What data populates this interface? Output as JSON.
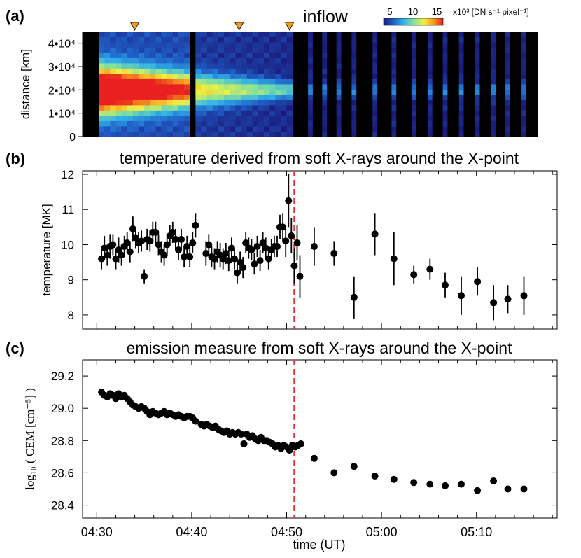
{
  "chart_data": [
    {
      "type": "heatmap",
      "panel_label": "(a)",
      "annotation": "inflow",
      "ylabel": "distance [km]",
      "yticks": [
        "0",
        "1•10⁴",
        "2•10⁴",
        "3•10⁴",
        "4•10⁴"
      ],
      "ylim": [
        0,
        45000
      ],
      "colorbar": {
        "ticks": [
          "5",
          "10",
          "15"
        ],
        "unit_label": "x10³ [DN s⁻¹ pixel⁻¹]",
        "range": [
          3,
          16
        ],
        "colors": [
          "#1a1a7a",
          "#2060c8",
          "#30b0e8",
          "#80e0a0",
          "#f0f040",
          "#f8a020",
          "#e82020"
        ]
      },
      "markers_time_min": [
        4.0,
        15.0,
        20.3
      ],
      "marker_color": "#f0a020",
      "vertical_dark_line_time_min": 10.0
    },
    {
      "type": "scatter",
      "panel_label": "(b)",
      "title": "temperature derived from soft X-rays around the X-point",
      "ylabel": "temperature [MK]",
      "yticks": [
        "8",
        "9",
        "10",
        "11",
        "12"
      ],
      "ylim": [
        7.6,
        12.1
      ],
      "xlim": [
        -1.5,
        48.5
      ],
      "marker_line_time_min": 20.8,
      "marker_line_color": "#e03030",
      "points": [
        {
          "t": 0.5,
          "y": 9.6,
          "err": 0.3
        },
        {
          "t": 0.8,
          "y": 9.9,
          "err": 0.35
        },
        {
          "t": 1.1,
          "y": 9.7,
          "err": 0.3
        },
        {
          "t": 1.4,
          "y": 9.95,
          "err": 0.35
        },
        {
          "t": 1.7,
          "y": 10.0,
          "err": 0.3
        },
        {
          "t": 2.0,
          "y": 9.6,
          "err": 0.3
        },
        {
          "t": 2.3,
          "y": 9.85,
          "err": 0.35
        },
        {
          "t": 2.6,
          "y": 9.7,
          "err": 0.3
        },
        {
          "t": 2.9,
          "y": 9.95,
          "err": 0.3
        },
        {
          "t": 3.2,
          "y": 10.05,
          "err": 0.3
        },
        {
          "t": 3.5,
          "y": 9.8,
          "err": 0.3
        },
        {
          "t": 3.8,
          "y": 10.45,
          "err": 0.35
        },
        {
          "t": 4.1,
          "y": 10.2,
          "err": 0.3
        },
        {
          "t": 4.4,
          "y": 10.05,
          "err": 0.3
        },
        {
          "t": 4.7,
          "y": 10.1,
          "err": 0.3
        },
        {
          "t": 5.0,
          "y": 9.1,
          "err": 0.2
        },
        {
          "t": 5.3,
          "y": 10.15,
          "err": 0.3
        },
        {
          "t": 5.6,
          "y": 10.1,
          "err": 0.3
        },
        {
          "t": 5.9,
          "y": 10.35,
          "err": 0.3
        },
        {
          "t": 6.2,
          "y": 10.35,
          "err": 0.3
        },
        {
          "t": 6.5,
          "y": 10.0,
          "err": 0.3
        },
        {
          "t": 6.8,
          "y": 9.8,
          "err": 0.3
        },
        {
          "t": 7.1,
          "y": 9.7,
          "err": 0.3
        },
        {
          "t": 7.4,
          "y": 10.0,
          "err": 0.3
        },
        {
          "t": 7.7,
          "y": 10.25,
          "err": 0.3
        },
        {
          "t": 8.0,
          "y": 10.35,
          "err": 0.3
        },
        {
          "t": 8.3,
          "y": 10.15,
          "err": 0.3
        },
        {
          "t": 8.6,
          "y": 9.85,
          "err": 0.3
        },
        {
          "t": 8.9,
          "y": 10.15,
          "err": 0.3
        },
        {
          "t": 9.2,
          "y": 9.65,
          "err": 0.3
        },
        {
          "t": 9.5,
          "y": 9.95,
          "err": 0.3
        },
        {
          "t": 9.8,
          "y": 9.65,
          "err": 0.3
        },
        {
          "t": 10.1,
          "y": 10.05,
          "err": 0.3
        },
        {
          "t": 10.4,
          "y": 10.55,
          "err": 0.35
        },
        {
          "t": 11.5,
          "y": 9.75,
          "err": 0.35
        },
        {
          "t": 11.8,
          "y": 10.0,
          "err": 0.3
        },
        {
          "t": 12.1,
          "y": 9.65,
          "err": 0.3
        },
        {
          "t": 12.4,
          "y": 9.6,
          "err": 0.3
        },
        {
          "t": 12.7,
          "y": 9.8,
          "err": 0.3
        },
        {
          "t": 13.0,
          "y": 9.7,
          "err": 0.35
        },
        {
          "t": 13.3,
          "y": 9.6,
          "err": 0.3
        },
        {
          "t": 13.6,
          "y": 9.75,
          "err": 0.3
        },
        {
          "t": 13.9,
          "y": 9.55,
          "err": 0.3
        },
        {
          "t": 14.2,
          "y": 9.9,
          "err": 0.3
        },
        {
          "t": 14.5,
          "y": 9.6,
          "err": 0.3
        },
        {
          "t": 14.8,
          "y": 9.2,
          "err": 0.3
        },
        {
          "t": 15.1,
          "y": 9.5,
          "err": 0.3
        },
        {
          "t": 15.4,
          "y": 9.35,
          "err": 0.3
        },
        {
          "t": 15.7,
          "y": 10.05,
          "err": 0.3
        },
        {
          "t": 16.0,
          "y": 9.9,
          "err": 0.3
        },
        {
          "t": 16.3,
          "y": 9.85,
          "err": 0.3
        },
        {
          "t": 16.6,
          "y": 9.45,
          "err": 0.3
        },
        {
          "t": 16.9,
          "y": 9.95,
          "err": 0.3
        },
        {
          "t": 17.2,
          "y": 9.55,
          "err": 0.3
        },
        {
          "t": 17.5,
          "y": 10.05,
          "err": 0.3
        },
        {
          "t": 17.8,
          "y": 9.9,
          "err": 0.3
        },
        {
          "t": 18.1,
          "y": 9.6,
          "err": 0.3
        },
        {
          "t": 18.4,
          "y": 9.85,
          "err": 0.3
        },
        {
          "t": 18.7,
          "y": 9.95,
          "err": 0.3
        },
        {
          "t": 19.0,
          "y": 9.95,
          "err": 0.3
        },
        {
          "t": 19.3,
          "y": 10.5,
          "err": 0.35
        },
        {
          "t": 19.6,
          "y": 10.5,
          "err": 0.4
        },
        {
          "t": 19.9,
          "y": 10.1,
          "err": 0.45
        },
        {
          "t": 20.2,
          "y": 11.25,
          "err": 0.75
        },
        {
          "t": 20.5,
          "y": 10.25,
          "err": 0.5
        },
        {
          "t": 20.8,
          "y": 9.4,
          "err": 0.5
        },
        {
          "t": 21.1,
          "y": 10.05,
          "err": 0.5
        },
        {
          "t": 21.4,
          "y": 9.1,
          "err": 0.6
        },
        {
          "t": 22.9,
          "y": 9.95,
          "err": 0.55
        },
        {
          "t": 25.0,
          "y": 9.75,
          "err": 0.35
        },
        {
          "t": 27.1,
          "y": 8.5,
          "err": 0.6
        },
        {
          "t": 29.3,
          "y": 10.3,
          "err": 0.6
        },
        {
          "t": 31.3,
          "y": 9.6,
          "err": 0.75
        },
        {
          "t": 33.4,
          "y": 9.15,
          "err": 0.25
        },
        {
          "t": 35.1,
          "y": 9.3,
          "err": 0.3
        },
        {
          "t": 36.7,
          "y": 8.85,
          "err": 0.35
        },
        {
          "t": 38.4,
          "y": 8.55,
          "err": 0.55
        },
        {
          "t": 40.1,
          "y": 8.95,
          "err": 0.4
        },
        {
          "t": 41.8,
          "y": 8.35,
          "err": 0.5
        },
        {
          "t": 43.3,
          "y": 8.45,
          "err": 0.4
        },
        {
          "t": 45.0,
          "y": 8.55,
          "err": 0.55
        }
      ]
    },
    {
      "type": "scatter",
      "panel_label": "(c)",
      "title": "emission measure from soft X-rays around the X-point",
      "ylabel": "log₁₀ ( CEM [cm⁻⁵] )",
      "yticks": [
        "28.4",
        "28.6",
        "28.8",
        "29.0",
        "29.2"
      ],
      "ylim": [
        28.32,
        29.3
      ],
      "xlim": [
        -1.5,
        48.5
      ],
      "xlabel": "time (UT)",
      "xticks": [
        "04:30",
        "04:40",
        "04:50",
        "05:00",
        "05:10"
      ],
      "xtick_values_min": [
        0,
        10,
        20,
        30,
        40
      ],
      "marker_line_time_min": 20.8,
      "points": [
        {
          "t": 0.5,
          "y": 29.1
        },
        {
          "t": 0.8,
          "y": 29.08
        },
        {
          "t": 1.1,
          "y": 29.07
        },
        {
          "t": 1.4,
          "y": 29.09
        },
        {
          "t": 1.7,
          "y": 29.08
        },
        {
          "t": 2.0,
          "y": 29.06
        },
        {
          "t": 2.3,
          "y": 29.09
        },
        {
          "t": 2.6,
          "y": 29.07
        },
        {
          "t": 2.9,
          "y": 29.08
        },
        {
          "t": 3.2,
          "y": 29.06
        },
        {
          "t": 3.5,
          "y": 29.04
        },
        {
          "t": 3.8,
          "y": 29.02
        },
        {
          "t": 4.1,
          "y": 29.01
        },
        {
          "t": 4.4,
          "y": 29.0
        },
        {
          "t": 4.7,
          "y": 29.01
        },
        {
          "t": 5.0,
          "y": 29.0
        },
        {
          "t": 5.3,
          "y": 28.98
        },
        {
          "t": 5.6,
          "y": 28.96
        },
        {
          "t": 5.9,
          "y": 28.98
        },
        {
          "t": 6.2,
          "y": 28.97
        },
        {
          "t": 6.5,
          "y": 28.96
        },
        {
          "t": 6.8,
          "y": 28.97
        },
        {
          "t": 7.1,
          "y": 28.98
        },
        {
          "t": 7.4,
          "y": 28.96
        },
        {
          "t": 7.7,
          "y": 28.97
        },
        {
          "t": 8.0,
          "y": 28.96
        },
        {
          "t": 8.3,
          "y": 28.95
        },
        {
          "t": 8.6,
          "y": 28.96
        },
        {
          "t": 8.9,
          "y": 28.95
        },
        {
          "t": 9.2,
          "y": 28.94
        },
        {
          "t": 9.5,
          "y": 28.95
        },
        {
          "t": 9.8,
          "y": 28.95
        },
        {
          "t": 10.1,
          "y": 28.94
        },
        {
          "t": 10.4,
          "y": 28.92
        },
        {
          "t": 11.0,
          "y": 28.9
        },
        {
          "t": 11.3,
          "y": 28.89
        },
        {
          "t": 11.6,
          "y": 28.9
        },
        {
          "t": 11.9,
          "y": 28.89
        },
        {
          "t": 12.2,
          "y": 28.88
        },
        {
          "t": 12.5,
          "y": 28.89
        },
        {
          "t": 12.8,
          "y": 28.87
        },
        {
          "t": 13.1,
          "y": 28.86
        },
        {
          "t": 13.4,
          "y": 28.85
        },
        {
          "t": 13.7,
          "y": 28.86
        },
        {
          "t": 14.0,
          "y": 28.84
        },
        {
          "t": 14.3,
          "y": 28.85
        },
        {
          "t": 14.6,
          "y": 28.84
        },
        {
          "t": 14.9,
          "y": 28.85
        },
        {
          "t": 15.2,
          "y": 28.84
        },
        {
          "t": 15.5,
          "y": 28.78
        },
        {
          "t": 15.8,
          "y": 28.84
        },
        {
          "t": 16.1,
          "y": 28.82
        },
        {
          "t": 16.4,
          "y": 28.83
        },
        {
          "t": 16.7,
          "y": 28.81
        },
        {
          "t": 17.0,
          "y": 28.8
        },
        {
          "t": 17.3,
          "y": 28.82
        },
        {
          "t": 17.6,
          "y": 28.8
        },
        {
          "t": 17.9,
          "y": 28.8
        },
        {
          "t": 18.2,
          "y": 28.79
        },
        {
          "t": 18.5,
          "y": 28.78
        },
        {
          "t": 18.8,
          "y": 28.76
        },
        {
          "t": 19.1,
          "y": 28.77
        },
        {
          "t": 19.4,
          "y": 28.75
        },
        {
          "t": 19.7,
          "y": 28.77
        },
        {
          "t": 20.0,
          "y": 28.76
        },
        {
          "t": 20.3,
          "y": 28.74
        },
        {
          "t": 20.6,
          "y": 28.77
        },
        {
          "t": 20.9,
          "y": 28.76
        },
        {
          "t": 21.2,
          "y": 28.77
        },
        {
          "t": 21.5,
          "y": 28.78
        },
        {
          "t": 22.9,
          "y": 28.69
        },
        {
          "t": 25.0,
          "y": 28.6
        },
        {
          "t": 27.1,
          "y": 28.64
        },
        {
          "t": 29.3,
          "y": 28.58
        },
        {
          "t": 31.3,
          "y": 28.56
        },
        {
          "t": 33.4,
          "y": 28.54
        },
        {
          "t": 35.1,
          "y": 28.53
        },
        {
          "t": 36.7,
          "y": 28.52
        },
        {
          "t": 38.4,
          "y": 28.53
        },
        {
          "t": 40.1,
          "y": 28.49
        },
        {
          "t": 41.8,
          "y": 28.55
        },
        {
          "t": 43.3,
          "y": 28.5
        },
        {
          "t": 45.0,
          "y": 28.5
        }
      ]
    }
  ]
}
